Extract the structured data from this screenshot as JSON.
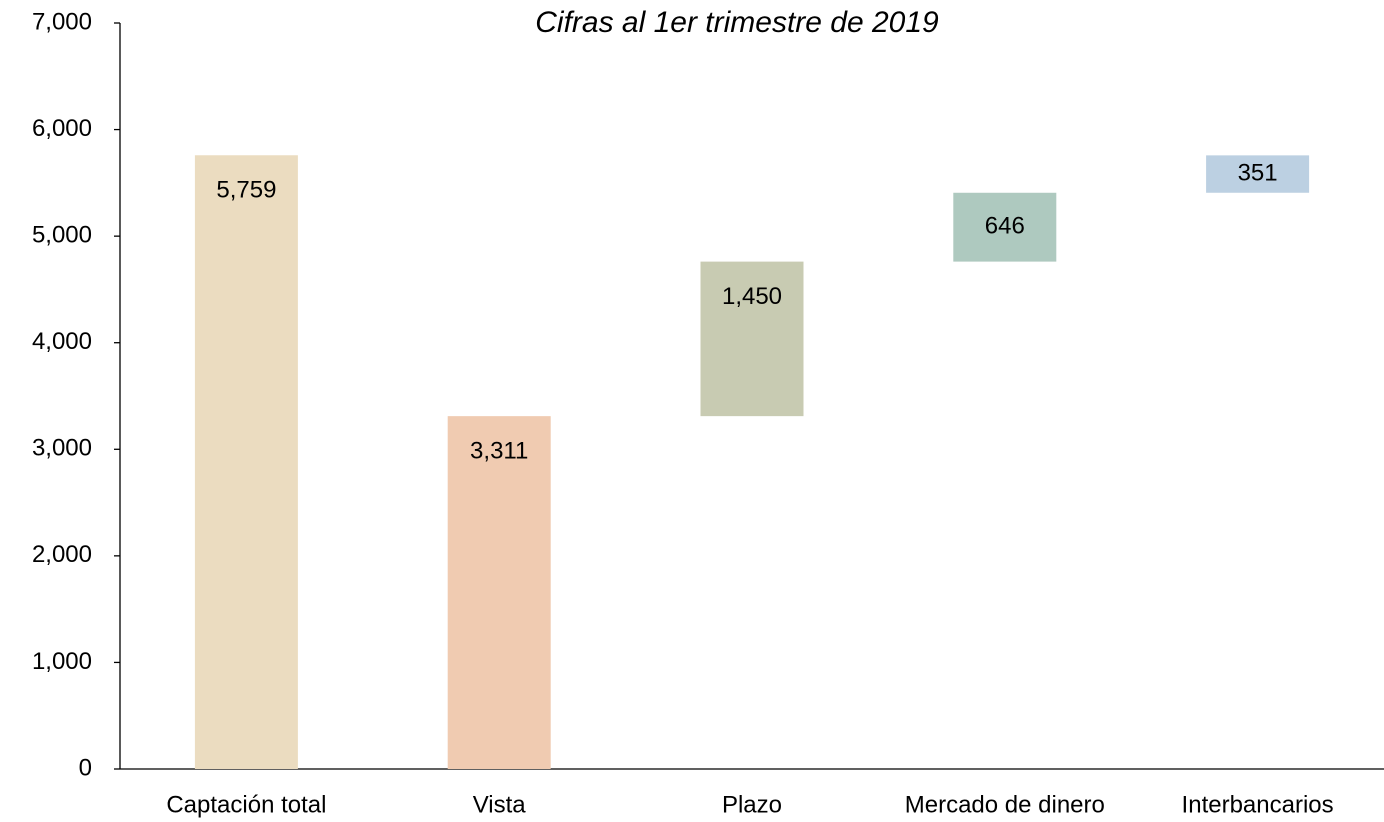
{
  "chart_data": {
    "type": "waterfall",
    "title": "Cifras al 1er trimestre de 2019",
    "categories": [
      "Captación total",
      "Vista",
      "Plazo",
      "Mercado de dinero",
      "Interbancarios"
    ],
    "values": [
      5759,
      3311,
      1450,
      646,
      351
    ],
    "value_labels": [
      "5,759",
      "3,311",
      "1,450",
      "646",
      "351"
    ],
    "colors": [
      "#ebdcc0",
      "#f0cbb1",
      "#c8cbb2",
      "#aec9bf",
      "#bcd0e2"
    ],
    "ylim": [
      0,
      7000
    ],
    "yticks": [
      0,
      {
        "value": 1000,
        "label": "1,000"
      },
      {
        "value": 2000,
        "label": "2,000"
      },
      {
        "value": 3000,
        "label": "3,000"
      },
      {
        "value": 4000,
        "label": "4,000"
      },
      {
        "value": 5000,
        "label": "5,000"
      },
      {
        "value": 6000,
        "label": "6,000"
      },
      {
        "value": 7000,
        "label": "7,000"
      }
    ],
    "grid": false
  }
}
